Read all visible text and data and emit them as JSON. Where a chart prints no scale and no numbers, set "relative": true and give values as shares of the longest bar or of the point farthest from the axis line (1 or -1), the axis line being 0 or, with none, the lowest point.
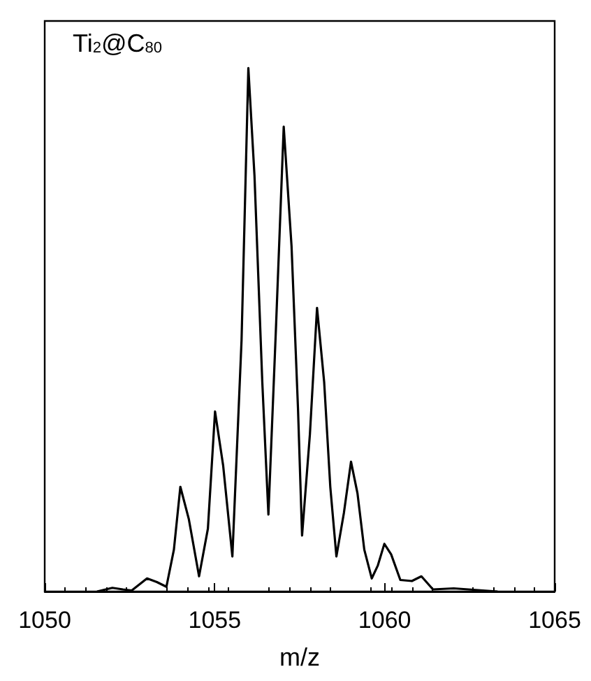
{
  "chart_data": {
    "type": "line",
    "relative": true,
    "xlabel": "m/z",
    "annotations": [
      "Ti$_{2}$@C$_{80}$"
    ],
    "xlim": [
      1050,
      1065
    ],
    "xticks": [
      1050,
      1055,
      1060,
      1065
    ],
    "grid": false,
    "marker": "none",
    "line_style": "solid",
    "series": [
      {
        "color": "#000000",
        "x": [
          1051.54,
          1051.99,
          1052.3,
          1052.56,
          1053.01,
          1053.3,
          1053.58,
          1053.8,
          1053.99,
          1054.24,
          1054.54,
          1054.8,
          1055.01,
          1055.25,
          1055.52,
          1055.79,
          1055.99,
          1056.17,
          1056.4,
          1056.58,
          1056.8,
          1057.03,
          1057.26,
          1057.45,
          1057.57,
          1057.8,
          1058.01,
          1058.22,
          1058.4,
          1058.58,
          1058.8,
          1059.01,
          1059.2,
          1059.4,
          1059.62,
          1059.8,
          1059.99,
          1060.19,
          1060.46,
          1060.8,
          1061.08,
          1061.42,
          1062.03,
          1063.32
        ],
        "values": [
          0,
          0.007,
          0.004,
          0.002,
          0.025,
          0.018,
          0.009,
          0.08,
          0.2,
          0.138,
          0.029,
          0.12,
          0.344,
          0.24,
          0.067,
          0.48,
          1.0,
          0.795,
          0.4,
          0.147,
          0.5,
          0.888,
          0.66,
          0.35,
          0.107,
          0.3,
          0.542,
          0.4,
          0.2,
          0.067,
          0.15,
          0.248,
          0.1875,
          0.08,
          0.025,
          0.05,
          0.091,
          0.071,
          0.022,
          0.02,
          0.029,
          0.004,
          0.006,
          0
        ]
      }
    ]
  }
}
